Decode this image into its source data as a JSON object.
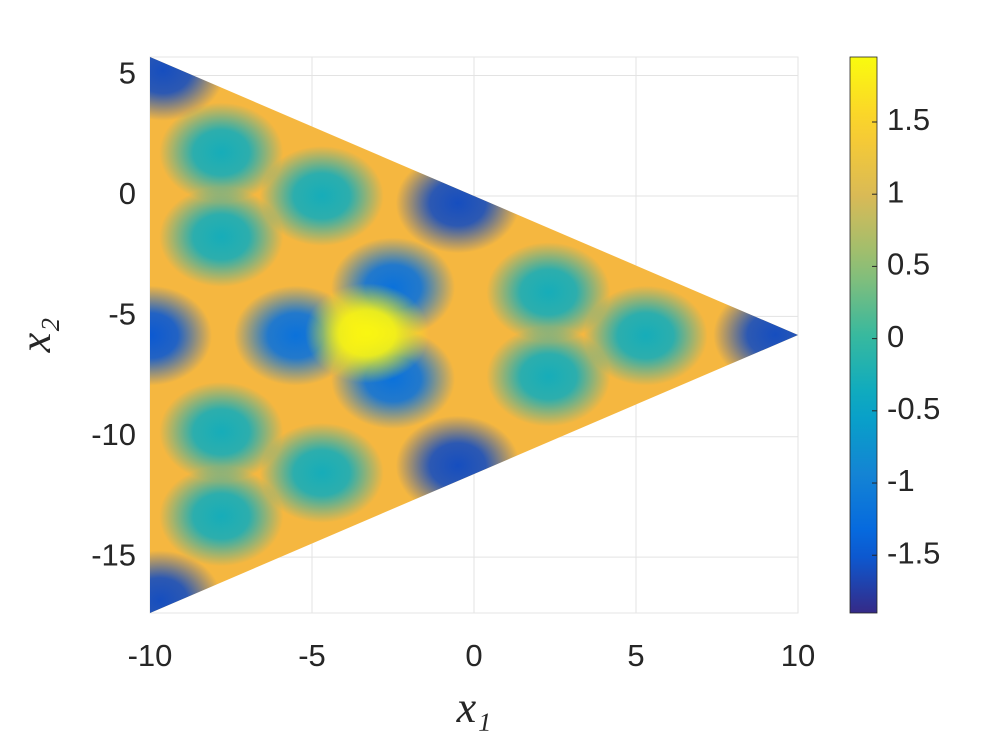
{
  "chart_data": {
    "type": "heatmap",
    "xlabel": "x₁",
    "ylabel": "x₂",
    "x": [
      -9.6,
      -9.7,
      9.3,
      -0.5,
      -0.5,
      -10,
      -5.5,
      -2.5,
      -2.5,
      -3.3,
      -7.8,
      -4.7,
      -7.8,
      -7.8,
      -4.7,
      -7.8,
      2.3,
      2.3,
      5.3
    ],
    "y": [
      5.2,
      -16.8,
      -5.77,
      -0.3,
      -11.2,
      -5.8,
      -5.8,
      -3.8,
      -7.6,
      -5.7,
      1.8,
      0,
      -1.7,
      -9.8,
      -11.5,
      -13.3,
      -4,
      -7.5,
      -5.8
    ],
    "values": [
      -1.6,
      -1.6,
      -1.6,
      -1.6,
      -1.6,
      -1.5,
      -1.2,
      -1.2,
      -1.2,
      1.9,
      -0.3,
      -0.3,
      -0.3,
      -0.3,
      -0.3,
      -0.3,
      -0.3,
      -0.3,
      -0.3
    ],
    "xlim": [
      -10,
      10
    ],
    "ylim": [
      -17.32,
      5.77
    ],
    "xticks": [
      -10,
      -5,
      0,
      5,
      10
    ],
    "yticks": [
      -15,
      -10,
      -5,
      0,
      5
    ],
    "clim": [
      -1.9,
      1.95
    ],
    "cticks": [
      -1.5,
      -1,
      -0.5,
      0,
      0.5,
      1,
      1.5
    ],
    "colormap": "parula",
    "grid": true
  }
}
